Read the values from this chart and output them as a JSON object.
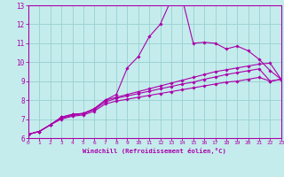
{
  "title": "",
  "xlabel": "Windchill (Refroidissement éolien,°C)",
  "xlim": [
    0,
    23
  ],
  "ylim": [
    6,
    13
  ],
  "xticks": [
    0,
    1,
    2,
    3,
    4,
    5,
    6,
    7,
    8,
    9,
    10,
    11,
    12,
    13,
    14,
    15,
    16,
    17,
    18,
    19,
    20,
    21,
    22,
    23
  ],
  "yticks": [
    6,
    7,
    8,
    9,
    10,
    11,
    12,
    13
  ],
  "bg_color": "#c5ecec",
  "grid_color": "#9dd4d4",
  "line_color": "#aa00aa",
  "curve1_x": [
    0,
    1,
    2,
    3,
    4,
    5,
    6,
    7,
    8,
    9,
    10,
    11,
    12,
    13,
    14,
    15,
    16,
    17,
    18,
    19,
    20,
    21,
    22,
    23
  ],
  "curve1_y": [
    6.2,
    6.35,
    6.7,
    7.1,
    7.25,
    7.3,
    7.55,
    8.0,
    8.3,
    9.7,
    10.3,
    11.35,
    12.0,
    13.3,
    13.35,
    11.0,
    11.05,
    11.0,
    10.7,
    10.85,
    10.6,
    10.15,
    9.55,
    9.1
  ],
  "curve2_x": [
    0,
    1,
    2,
    3,
    4,
    5,
    6,
    7,
    8,
    9,
    10,
    11,
    12,
    13,
    14,
    15,
    16,
    17,
    18,
    19,
    20,
    21,
    22,
    23
  ],
  "curve2_y": [
    6.2,
    6.35,
    6.7,
    7.1,
    7.25,
    7.3,
    7.55,
    8.0,
    8.15,
    8.3,
    8.45,
    8.6,
    8.75,
    8.9,
    9.05,
    9.2,
    9.35,
    9.5,
    9.6,
    9.7,
    9.8,
    9.9,
    9.95,
    9.1
  ],
  "curve3_x": [
    0,
    1,
    2,
    3,
    4,
    5,
    6,
    7,
    8,
    9,
    10,
    11,
    12,
    13,
    14,
    15,
    16,
    17,
    18,
    19,
    20,
    21,
    22,
    23
  ],
  "curve3_y": [
    6.2,
    6.35,
    6.7,
    7.05,
    7.2,
    7.28,
    7.5,
    7.9,
    8.1,
    8.22,
    8.35,
    8.47,
    8.6,
    8.72,
    8.85,
    8.95,
    9.1,
    9.22,
    9.35,
    9.45,
    9.55,
    9.65,
    9.0,
    9.1
  ],
  "curve4_x": [
    0,
    1,
    2,
    3,
    4,
    5,
    6,
    7,
    8,
    9,
    10,
    11,
    12,
    13,
    14,
    15,
    16,
    17,
    18,
    19,
    20,
    21,
    22,
    23
  ],
  "curve4_y": [
    6.2,
    6.35,
    6.7,
    7.0,
    7.15,
    7.22,
    7.42,
    7.8,
    7.95,
    8.05,
    8.15,
    8.25,
    8.35,
    8.45,
    8.55,
    8.65,
    8.75,
    8.85,
    8.95,
    9.0,
    9.1,
    9.2,
    9.0,
    9.1
  ]
}
